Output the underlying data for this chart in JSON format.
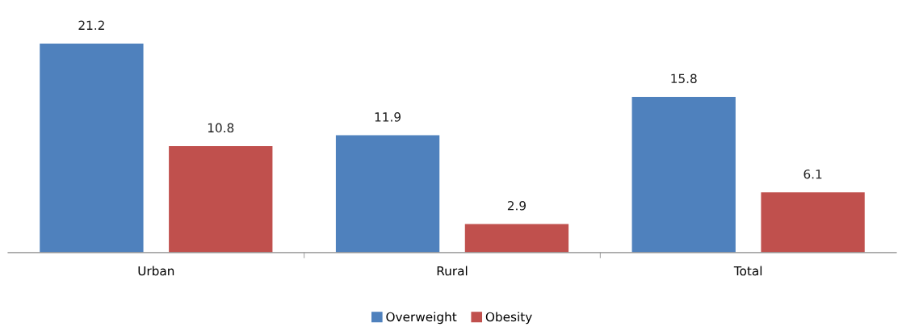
{
  "chart_data": {
    "type": "bar",
    "categories": [
      "Urban",
      "Rural",
      "Total"
    ],
    "series": [
      {
        "name": "Overweight",
        "color": "#4f81bd",
        "values": [
          21.2,
          11.9,
          15.8
        ]
      },
      {
        "name": "Obesity",
        "color": "#c0504d",
        "values": [
          10.8,
          2.9,
          6.1
        ]
      }
    ],
    "tick_labels": "x",
    "data_labels": true,
    "legend": "bottom"
  }
}
